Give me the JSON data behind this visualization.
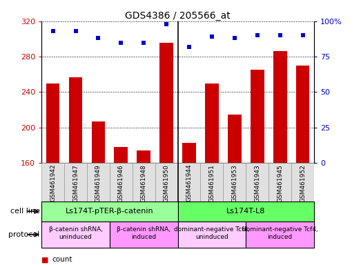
{
  "title": "GDS4386 / 205566_at",
  "samples": [
    "GSM461942",
    "GSM461947",
    "GSM461949",
    "GSM461946",
    "GSM461948",
    "GSM461950",
    "GSM461944",
    "GSM461951",
    "GSM461953",
    "GSM461943",
    "GSM461945",
    "GSM461952"
  ],
  "counts": [
    250,
    257,
    207,
    178,
    174,
    296,
    183,
    250,
    215,
    265,
    286,
    270
  ],
  "percentile_ranks": [
    93,
    93,
    88,
    85,
    85,
    98,
    82,
    89,
    88,
    90,
    90,
    90
  ],
  "ylim_left": [
    160,
    320
  ],
  "ylim_right": [
    0,
    100
  ],
  "yticks_left": [
    160,
    200,
    240,
    280,
    320
  ],
  "yticks_right": [
    0,
    25,
    50,
    75,
    100
  ],
  "bar_color": "#cc0000",
  "dot_color": "#0000cc",
  "plot_bg_color": "#ffffff",
  "cell_line_groups": [
    {
      "name": "Ls174T-pTER-β-catenin",
      "start": 0,
      "end": 5,
      "color": "#99ff99"
    },
    {
      "name": "Ls174T-L8",
      "start": 6,
      "end": 11,
      "color": "#66ff66"
    }
  ],
  "protocol_groups": [
    {
      "name": "β-catenin shRNA,\nuninduced",
      "start": 0,
      "end": 2,
      "color": "#ffccff"
    },
    {
      "name": "β-catenin shRNA,\ninduced",
      "start": 3,
      "end": 5,
      "color": "#ff99ff"
    },
    {
      "name": "dominant-negative Tcf4,\nuninduced",
      "start": 6,
      "end": 8,
      "color": "#ffccff"
    },
    {
      "name": "dominant-negative Tcf4,\ninduced",
      "start": 9,
      "end": 11,
      "color": "#ff99ff"
    }
  ],
  "divider_after": 5,
  "sample_label_bg": "#d8d8d8",
  "cell_line_label": "cell line",
  "protocol_label": "protocol"
}
